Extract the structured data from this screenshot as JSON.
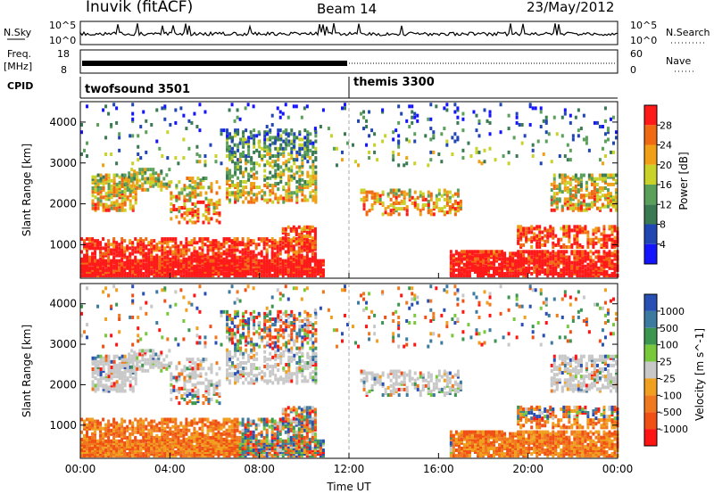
{
  "header": {
    "station": "Inuvik (fitACF)",
    "beam": "Beam 14",
    "date": "23/May/2012"
  },
  "strips": {
    "nsky": {
      "label": "N.Sky",
      "ticks": [
        "10^5",
        "10^0"
      ],
      "right_ticks": [
        "10^5",
        "10^0"
      ],
      "right_label": "N.Search"
    },
    "freq": {
      "label_top": "Freq.",
      "label_bottom": "[MHz]",
      "ticks": [
        "18",
        "8"
      ],
      "right_ticks": [
        "60",
        "0"
      ],
      "right_label": "Nave"
    },
    "cpid": {
      "label": "CPID",
      "programs": [
        {
          "name": "twofsound 3501",
          "start_hour": 0
        },
        {
          "name": "themis 3300",
          "start_hour": 12
        }
      ]
    }
  },
  "chart_data": [
    {
      "type": "heatmap",
      "title": "",
      "xlabel": "",
      "ylabel": "Slant Range [km]",
      "xlim": [
        0,
        24
      ],
      "ylim": [
        180,
        4500
      ],
      "yticks": [
        "1000",
        "2000",
        "3000",
        "4000"
      ],
      "colorbar": {
        "label": "Power [dB]",
        "ticks": [
          "4",
          "8",
          "12",
          "16",
          "20",
          "24",
          "28"
        ],
        "colors": [
          "#1414ff",
          "#2046b4",
          "#3a7a52",
          "#5aa05a",
          "#c8d228",
          "#f0a016",
          "#f06a14",
          "#ff1a1a"
        ]
      }
    },
    {
      "type": "heatmap",
      "title": "",
      "xlabel": "Time UT",
      "ylabel": "Slant Range [km]",
      "xlim": [
        0,
        24
      ],
      "ylim": [
        180,
        4500
      ],
      "xticks": [
        "00:00",
        "04:00",
        "08:00",
        "12:00",
        "16:00",
        "20:00",
        "00:00"
      ],
      "yticks": [
        "1000",
        "2000",
        "3000",
        "4000"
      ],
      "colorbar": {
        "label": "Velocity [m s^-1]",
        "ticks": [
          "1000",
          "500",
          "100",
          "25",
          "-25",
          "-100",
          "-500",
          "-1000"
        ],
        "colors": [
          "#2850b4",
          "#3c7aa0",
          "#3c9650",
          "#78c83c",
          "#c8c8c8",
          "#f0a01e",
          "#f0781e",
          "#f05014",
          "#ff1414"
        ]
      }
    }
  ],
  "colors": {
    "missing": "#c8c8c8"
  }
}
